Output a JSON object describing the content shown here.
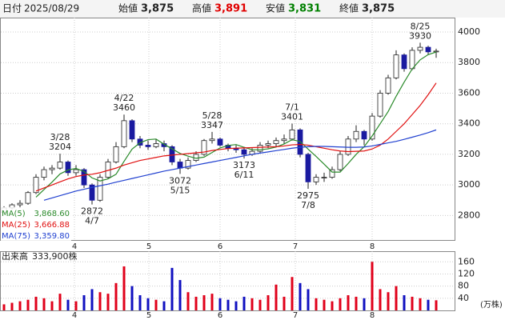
{
  "header": {
    "date_label": "日付",
    "date": "2025/08/29",
    "fields": [
      {
        "label": "始値",
        "text": "3,875",
        "color": "#222"
      },
      {
        "label": "高値",
        "text": "3,891",
        "color": "#e00000"
      },
      {
        "label": "安値",
        "text": "3,831",
        "color": "#008000"
      },
      {
        "label": "終値",
        "text": "3,875",
        "color": "#222"
      }
    ]
  },
  "chart_data": {
    "type": "candlestick",
    "open": [
      2820,
      2850,
      2870,
      2880,
      2950,
      3050,
      3100,
      3110,
      3150,
      3080,
      3100,
      3000,
      2900,
      3050,
      3150,
      3250,
      3420,
      3300,
      3260,
      3250,
      3270,
      3250,
      3150,
      3110,
      3160,
      3200,
      3290,
      3300,
      3260,
      3240,
      3230,
      3200,
      3220,
      3260,
      3270,
      3290,
      3300,
      3360,
      3200,
      3020,
      3050,
      3050,
      3100,
      3200,
      3300,
      3350,
      3300,
      3450,
      3600,
      3700,
      3850,
      3760,
      3880,
      3900,
      3875
    ],
    "high": [
      2860,
      2880,
      2900,
      2960,
      3070,
      3120,
      3130,
      3204,
      3160,
      3130,
      3110,
      3010,
      3070,
      3170,
      3280,
      3460,
      3430,
      3320,
      3290,
      3300,
      3290,
      3260,
      3170,
      3180,
      3220,
      3300,
      3347,
      3310,
      3270,
      3260,
      3240,
      3240,
      3280,
      3290,
      3310,
      3330,
      3401,
      3370,
      3210,
      3070,
      3080,
      3120,
      3220,
      3320,
      3390,
      3360,
      3470,
      3620,
      3720,
      3880,
      3860,
      3900,
      3930,
      3910,
      3891
    ],
    "low": [
      2810,
      2840,
      2850,
      2870,
      2940,
      3030,
      3070,
      3100,
      3060,
      3060,
      2980,
      2872,
      2890,
      3040,
      3140,
      3240,
      3280,
      3240,
      3230,
      3240,
      3220,
      3130,
      3072,
      3100,
      3150,
      3190,
      3270,
      3250,
      3220,
      3210,
      3173,
      3190,
      3210,
      3240,
      3250,
      3270,
      3290,
      3180,
      2975,
      3000,
      3020,
      3040,
      3090,
      3190,
      3280,
      3260,
      3290,
      3440,
      3590,
      3690,
      3740,
      3750,
      3860,
      3850,
      3831
    ],
    "close": [
      2850,
      2870,
      2880,
      2950,
      3050,
      3100,
      3110,
      3150,
      3080,
      3100,
      3000,
      2900,
      3050,
      3150,
      3250,
      3420,
      3300,
      3260,
      3250,
      3270,
      3250,
      3150,
      3110,
      3160,
      3200,
      3290,
      3300,
      3260,
      3240,
      3230,
      3200,
      3220,
      3260,
      3270,
      3290,
      3300,
      3360,
      3200,
      3020,
      3050,
      3050,
      3100,
      3200,
      3300,
      3350,
      3300,
      3450,
      3600,
      3700,
      3850,
      3760,
      3880,
      3900,
      3870,
      3875
    ],
    "volume": [
      20,
      25,
      30,
      35,
      45,
      40,
      30,
      55,
      35,
      30,
      50,
      70,
      60,
      55,
      90,
      145,
      80,
      50,
      40,
      35,
      30,
      140,
      100,
      60,
      45,
      50,
      55,
      40,
      35,
      30,
      45,
      40,
      35,
      50,
      85,
      45,
      110,
      90,
      70,
      40,
      35,
      30,
      40,
      50,
      45,
      40,
      160,
      70,
      60,
      80,
      50,
      45,
      40,
      35,
      33.39
    ],
    "up_color": "#ffffff",
    "down_color": "#1a1aa0",
    "up_volume_color": "#e0001a",
    "down_volume_color": "#1010c0",
    "ma": [
      {
        "name": "MA(5)",
        "value_text": "3,868.60",
        "color": "#2a8a2a",
        "values": [
          null,
          null,
          null,
          null,
          2920,
          2970,
          3018,
          3072,
          3098,
          3108,
          3088,
          3046,
          3026,
          3040,
          3070,
          3154,
          3234,
          3276,
          3296,
          3300,
          3266,
          3236,
          3206,
          3188,
          3174,
          3182,
          3212,
          3242,
          3258,
          3264,
          3246,
          3230,
          3230,
          3236,
          3248,
          3268,
          3296,
          3284,
          3234,
          3186,
          3136,
          3084,
          3084,
          3140,
          3200,
          3250,
          3320,
          3400,
          3480,
          3580,
          3672,
          3758,
          3818,
          3852,
          3868.6
        ]
      },
      {
        "name": "MA(25)",
        "value_text": "3,666.88",
        "color": "#e01010",
        "values": [
          null,
          null,
          null,
          null,
          2960,
          2980,
          3000,
          3020,
          3040,
          3055,
          3065,
          3070,
          3080,
          3095,
          3110,
          3130,
          3145,
          3160,
          3170,
          3180,
          3190,
          3195,
          3200,
          3205,
          3210,
          3215,
          3225,
          3232,
          3238,
          3240,
          3242,
          3244,
          3246,
          3248,
          3250,
          3255,
          3262,
          3265,
          3260,
          3250,
          3240,
          3230,
          3222,
          3218,
          3220,
          3222,
          3235,
          3260,
          3300,
          3350,
          3400,
          3460,
          3520,
          3590,
          3666.88
        ]
      },
      {
        "name": "MA(75)",
        "value_text": "3,359.80",
        "color": "#2040d0",
        "values": [
          null,
          null,
          null,
          null,
          null,
          2900,
          2915,
          2930,
          2945,
          2960,
          2972,
          2984,
          2995,
          3005,
          3018,
          3030,
          3042,
          3054,
          3066,
          3078,
          3090,
          3100,
          3110,
          3120,
          3130,
          3140,
          3150,
          3160,
          3170,
          3180,
          3190,
          3200,
          3208,
          3216,
          3224,
          3232,
          3240,
          3246,
          3250,
          3252,
          3252,
          3250,
          3248,
          3246,
          3246,
          3248,
          3255,
          3265,
          3275,
          3285,
          3298,
          3312,
          3326,
          3342,
          3359.8
        ]
      }
    ],
    "xticks": [
      {
        "value": 8.8,
        "label": "4"
      },
      {
        "value": 18.1,
        "label": "5"
      },
      {
        "value": 27,
        "label": "6"
      },
      {
        "value": 36.4,
        "label": "7"
      },
      {
        "value": 46,
        "label": "8"
      }
    ],
    "ylim": [
      2640,
      4094
    ],
    "yticks": [
      2800,
      3000,
      3200,
      3400,
      3600,
      3800,
      4000
    ],
    "high_labels": [
      {
        "date": "3/28",
        "value": 3204
      },
      {
        "date": "4/22",
        "value": 3460
      },
      {
        "date": "5/28",
        "value": 3347
      },
      {
        "date": "7/1",
        "value": 3401
      },
      {
        "date": "8/25",
        "value": 3930
      }
    ],
    "low_labels": [
      {
        "date": "4/7",
        "value": 2872
      },
      {
        "date": "5/15",
        "value": 3072
      },
      {
        "date": "6/11",
        "value": 3173
      },
      {
        "date": "7/8",
        "value": 2975
      }
    ],
    "volume_panel": {
      "title": "出来高",
      "last": "333,900株",
      "unit": "(万株)",
      "ylim": [
        0,
        195
      ],
      "yticks": [
        40,
        80,
        120,
        160
      ]
    },
    "grid": true
  }
}
